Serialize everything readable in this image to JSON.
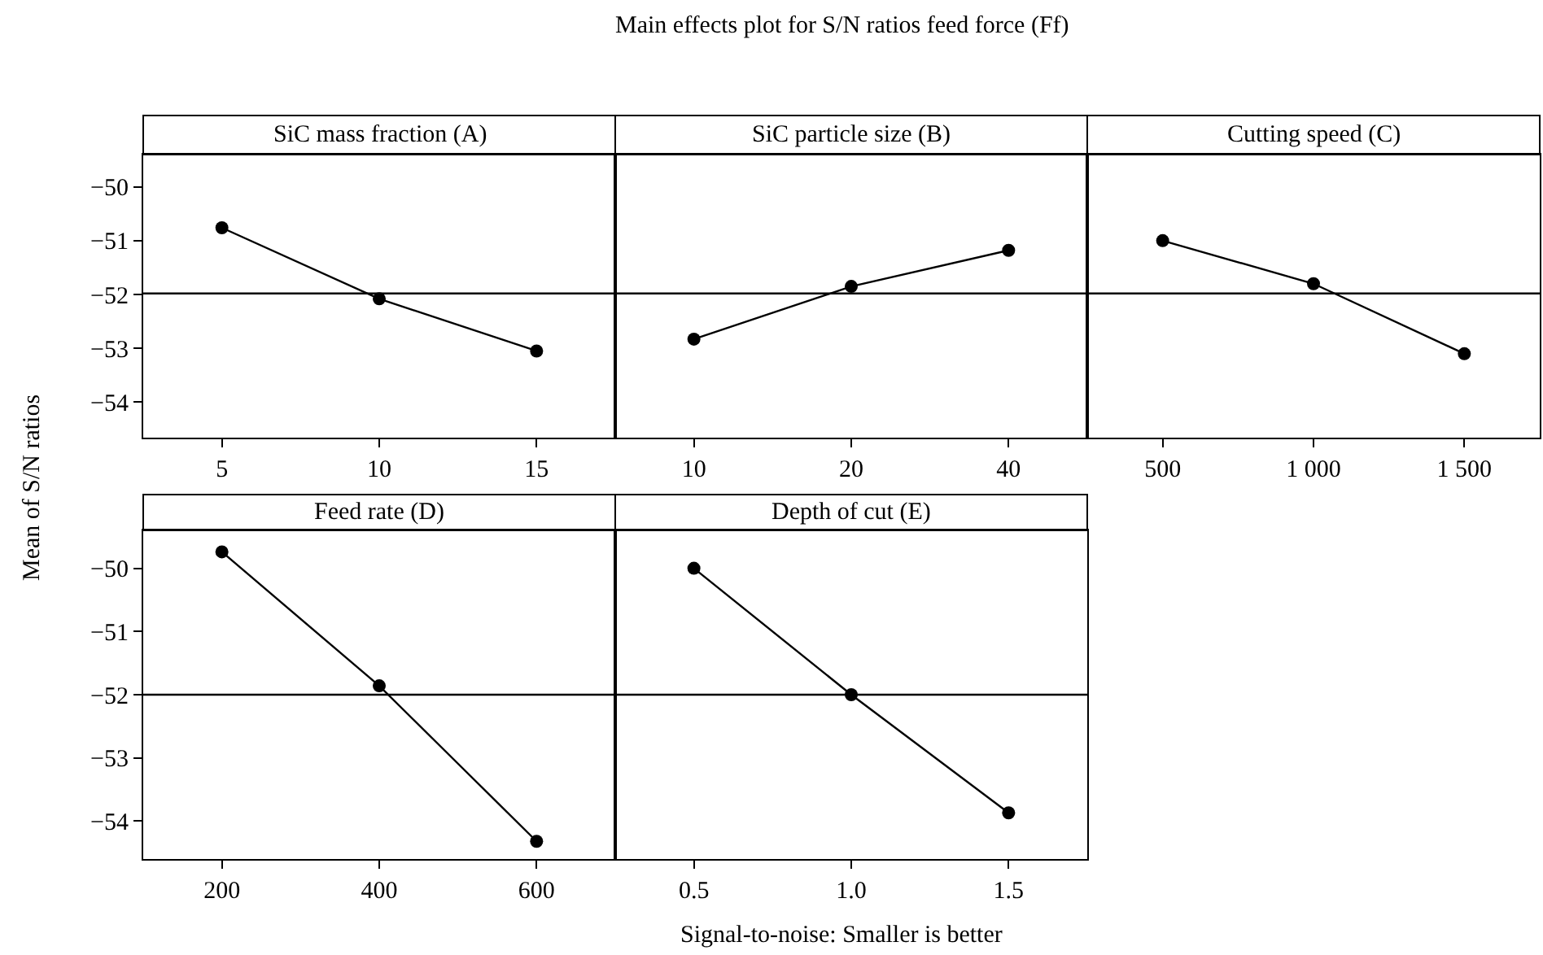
{
  "chart_data": [
    {
      "type": "line",
      "title": "SiC mass fraction (A)",
      "categories": [
        "5",
        "10",
        "15"
      ],
      "values": [
        -50.76,
        -52.08,
        -53.05
      ],
      "color": "#000000",
      "marker": "circle",
      "line_style": "solid",
      "ylim": [
        -54.66,
        -49.4
      ],
      "yticks": [
        -50,
        -51,
        -52,
        -53,
        -54
      ],
      "ref_lines": [
        {
          "axis": "y",
          "value": -51.98,
          "color": "#000000"
        }
      ],
      "grid": false,
      "annotations": [
        "Main effects plot for S/N ratios feed force (Ff)",
        "Signal-to-noise: Smaller is better"
      ],
      "ylabel": "Mean of S/N ratios"
    },
    {
      "type": "line",
      "title": "SiC particle size (B)",
      "categories": [
        "10",
        "20",
        "40"
      ],
      "values": [
        -52.83,
        -51.85,
        -51.18
      ],
      "color": "#000000",
      "marker": "circle",
      "line_style": "solid",
      "ylim": [
        -54.66,
        -49.4
      ],
      "yticks": [
        -50,
        -51,
        -52,
        -53,
        -54
      ],
      "ref_lines": [
        {
          "axis": "y",
          "value": -51.98,
          "color": "#000000"
        }
      ],
      "grid": false,
      "tick_labels": "x"
    },
    {
      "type": "line",
      "title": "Cutting speed (C)",
      "categories": [
        "500",
        "1 000",
        "1 500"
      ],
      "values": [
        -51.0,
        -51.8,
        -53.1
      ],
      "color": "#000000",
      "marker": "circle",
      "line_style": "solid",
      "ylim": [
        -54.66,
        -49.4
      ],
      "yticks": [
        -50,
        -51,
        -52,
        -53,
        -54
      ],
      "ref_lines": [
        {
          "axis": "y",
          "value": -51.98,
          "color": "#000000"
        }
      ],
      "grid": false,
      "tick_labels": "x"
    },
    {
      "type": "line",
      "title": "Feed rate (D)",
      "categories": [
        "200",
        "400",
        "600"
      ],
      "values": [
        -49.74,
        -51.86,
        -54.32
      ],
      "color": "#000000",
      "marker": "circle",
      "line_style": "solid",
      "ylim": [
        -54.6,
        -49.4
      ],
      "yticks": [
        -50,
        -51,
        -52,
        -53,
        -54
      ],
      "ref_lines": [
        {
          "axis": "y",
          "value": -52.0,
          "color": "#000000"
        }
      ],
      "grid": false
    },
    {
      "type": "line",
      "title": "Depth of cut (E)",
      "categories": [
        "0.5",
        "1.0",
        "1.5"
      ],
      "values": [
        -50.0,
        -52.0,
        -53.87
      ],
      "color": "#000000",
      "marker": "circle",
      "line_style": "solid",
      "ylim": [
        -54.6,
        -49.4
      ],
      "yticks": [
        -50,
        -51,
        -52,
        -53,
        -54
      ],
      "ref_lines": [
        {
          "axis": "y",
          "value": -52.0,
          "color": "#000000"
        }
      ],
      "grid": false,
      "tick_labels": "x"
    }
  ]
}
